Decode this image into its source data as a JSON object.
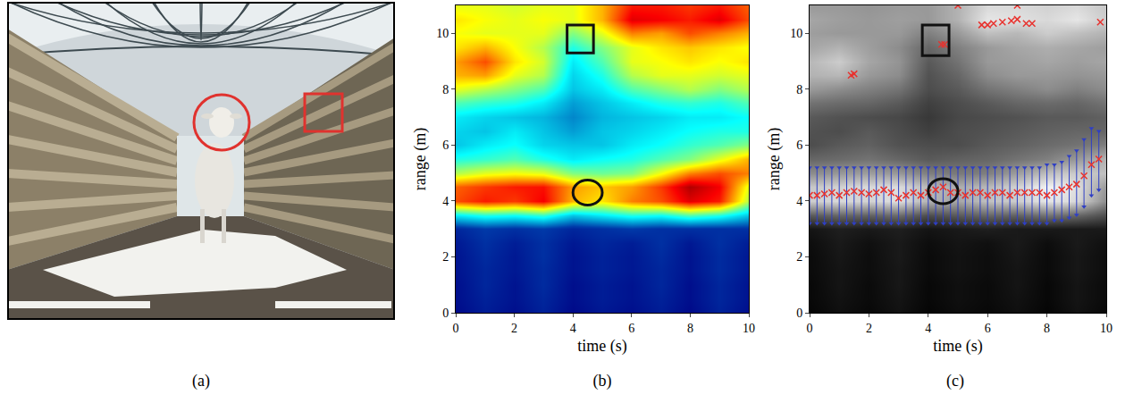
{
  "photo": {
    "label": "(a)"
  },
  "chart_data": [
    {
      "type": "heatmap",
      "label": "(b)",
      "color": "jet",
      "x_label": "time (s)",
      "y_label": "range (m)",
      "xlim": [
        0,
        10
      ],
      "xticks": [
        0,
        2,
        4,
        6,
        8,
        10
      ],
      "ylim": [
        0,
        11
      ],
      "yticks": [
        0,
        2,
        4,
        6,
        8,
        10
      ],
      "zlim": [
        0,
        1
      ],
      "x": [
        0,
        1,
        2,
        3,
        4,
        5,
        6,
        7,
        8,
        9,
        10
      ],
      "y": [
        0,
        0.5,
        1,
        1.5,
        2,
        2.5,
        3,
        3.5,
        4,
        4.5,
        5,
        5.5,
        6,
        6.5,
        7,
        7.5,
        8,
        8.5,
        9,
        9.5,
        10,
        10.5,
        11
      ],
      "z": [
        [
          0.02,
          0.06,
          0.03,
          0.07,
          0.02,
          0.05,
          0.03,
          0.06,
          0.02,
          0.07,
          0.03
        ],
        [
          0.03,
          0.07,
          0.04,
          0.08,
          0.03,
          0.06,
          0.04,
          0.07,
          0.03,
          0.08,
          0.04
        ],
        [
          0.03,
          0.08,
          0.04,
          0.09,
          0.03,
          0.06,
          0.04,
          0.08,
          0.03,
          0.08,
          0.04
        ],
        [
          0.04,
          0.08,
          0.05,
          0.09,
          0.04,
          0.07,
          0.05,
          0.08,
          0.04,
          0.09,
          0.05
        ],
        [
          0.04,
          0.09,
          0.05,
          0.1,
          0.04,
          0.07,
          0.05,
          0.09,
          0.04,
          0.09,
          0.05
        ],
        [
          0.05,
          0.1,
          0.06,
          0.1,
          0.05,
          0.08,
          0.06,
          0.1,
          0.05,
          0.1,
          0.06
        ],
        [
          0.08,
          0.12,
          0.1,
          0.12,
          0.08,
          0.1,
          0.12,
          0.1,
          0.1,
          0.1,
          0.1
        ],
        [
          0.35,
          0.4,
          0.38,
          0.42,
          0.3,
          0.35,
          0.4,
          0.38,
          0.45,
          0.4,
          0.3
        ],
        [
          0.8,
          0.85,
          0.82,
          0.88,
          0.7,
          0.65,
          0.75,
          0.8,
          0.9,
          0.85,
          0.55
        ],
        [
          0.78,
          0.82,
          0.85,
          0.86,
          0.72,
          0.68,
          0.72,
          0.82,
          0.95,
          0.88,
          0.6
        ],
        [
          0.55,
          0.6,
          0.62,
          0.6,
          0.5,
          0.48,
          0.5,
          0.62,
          0.75,
          0.8,
          0.75
        ],
        [
          0.4,
          0.42,
          0.45,
          0.4,
          0.35,
          0.38,
          0.4,
          0.45,
          0.5,
          0.6,
          0.7
        ],
        [
          0.3,
          0.35,
          0.38,
          0.32,
          0.3,
          0.3,
          0.35,
          0.38,
          0.42,
          0.45,
          0.5
        ],
        [
          0.32,
          0.3,
          0.35,
          0.3,
          0.25,
          0.3,
          0.32,
          0.35,
          0.38,
          0.4,
          0.4
        ],
        [
          0.35,
          0.32,
          0.3,
          0.28,
          0.22,
          0.28,
          0.3,
          0.32,
          0.35,
          0.35,
          0.38
        ],
        [
          0.45,
          0.42,
          0.4,
          0.35,
          0.25,
          0.3,
          0.35,
          0.4,
          0.42,
          0.4,
          0.45
        ],
        [
          0.6,
          0.55,
          0.5,
          0.45,
          0.3,
          0.35,
          0.45,
          0.5,
          0.55,
          0.5,
          0.55
        ],
        [
          0.7,
          0.72,
          0.6,
          0.55,
          0.32,
          0.4,
          0.55,
          0.6,
          0.6,
          0.58,
          0.6
        ],
        [
          0.72,
          0.8,
          0.65,
          0.58,
          0.35,
          0.45,
          0.6,
          0.62,
          0.65,
          0.62,
          0.65
        ],
        [
          0.65,
          0.7,
          0.62,
          0.55,
          0.4,
          0.5,
          0.6,
          0.65,
          0.68,
          0.65,
          0.62
        ],
        [
          0.62,
          0.6,
          0.6,
          0.6,
          0.5,
          0.6,
          0.75,
          0.72,
          0.8,
          0.75,
          0.7
        ],
        [
          0.65,
          0.62,
          0.6,
          0.62,
          0.6,
          0.7,
          0.9,
          0.88,
          0.85,
          0.9,
          0.8
        ],
        [
          0.6,
          0.6,
          0.58,
          0.6,
          0.6,
          0.7,
          0.85,
          0.85,
          0.82,
          0.85,
          0.78
        ]
      ],
      "highlights": [
        {
          "shape": "rect",
          "x": [
            3.8,
            4.7
          ],
          "y": [
            9.3,
            10.3
          ]
        },
        {
          "shape": "circle",
          "x": [
            4.0,
            5.0
          ],
          "y": [
            3.85,
            4.75
          ]
        }
      ]
    },
    {
      "type": "heatmap",
      "label": "(c)",
      "color": "gray",
      "x_label": "time (s)",
      "y_label": "range (m)",
      "xlim": [
        0,
        10
      ],
      "xticks": [
        0,
        2,
        4,
        6,
        8,
        10
      ],
      "ylim": [
        0,
        11
      ],
      "yticks": [
        0,
        2,
        4,
        6,
        8,
        10
      ],
      "zlim": [
        0,
        1
      ],
      "x": [
        0,
        1,
        2,
        3,
        4,
        5,
        6,
        7,
        8,
        9,
        10
      ],
      "y": [
        0,
        0.5,
        1,
        1.5,
        2,
        2.5,
        3,
        3.5,
        4,
        4.5,
        5,
        5.5,
        6,
        6.5,
        7,
        7.5,
        8,
        8.5,
        9,
        9.5,
        10,
        10.5,
        11
      ],
      "z": [
        [
          0.02,
          0.06,
          0.03,
          0.07,
          0.02,
          0.05,
          0.03,
          0.06,
          0.02,
          0.07,
          0.03
        ],
        [
          0.03,
          0.07,
          0.04,
          0.08,
          0.03,
          0.06,
          0.04,
          0.07,
          0.03,
          0.08,
          0.04
        ],
        [
          0.03,
          0.08,
          0.04,
          0.09,
          0.03,
          0.06,
          0.04,
          0.08,
          0.03,
          0.08,
          0.04
        ],
        [
          0.04,
          0.08,
          0.05,
          0.09,
          0.04,
          0.07,
          0.05,
          0.08,
          0.04,
          0.09,
          0.05
        ],
        [
          0.04,
          0.09,
          0.05,
          0.1,
          0.04,
          0.07,
          0.05,
          0.09,
          0.04,
          0.09,
          0.05
        ],
        [
          0.05,
          0.1,
          0.06,
          0.1,
          0.05,
          0.08,
          0.06,
          0.1,
          0.05,
          0.1,
          0.06
        ],
        [
          0.08,
          0.12,
          0.1,
          0.12,
          0.08,
          0.1,
          0.12,
          0.1,
          0.1,
          0.1,
          0.1
        ],
        [
          0.35,
          0.4,
          0.38,
          0.42,
          0.3,
          0.35,
          0.4,
          0.38,
          0.45,
          0.4,
          0.3
        ],
        [
          0.8,
          0.85,
          0.82,
          0.88,
          0.7,
          0.65,
          0.75,
          0.8,
          0.9,
          0.85,
          0.55
        ],
        [
          0.78,
          0.82,
          0.85,
          0.86,
          0.72,
          0.68,
          0.72,
          0.82,
          0.95,
          0.88,
          0.6
        ],
        [
          0.55,
          0.6,
          0.62,
          0.6,
          0.5,
          0.48,
          0.5,
          0.62,
          0.75,
          0.8,
          0.75
        ],
        [
          0.4,
          0.42,
          0.45,
          0.4,
          0.35,
          0.38,
          0.4,
          0.45,
          0.5,
          0.6,
          0.7
        ],
        [
          0.3,
          0.35,
          0.38,
          0.32,
          0.3,
          0.3,
          0.35,
          0.38,
          0.42,
          0.45,
          0.5
        ],
        [
          0.32,
          0.3,
          0.35,
          0.3,
          0.25,
          0.3,
          0.32,
          0.35,
          0.38,
          0.4,
          0.4
        ],
        [
          0.35,
          0.32,
          0.3,
          0.28,
          0.22,
          0.28,
          0.3,
          0.32,
          0.35,
          0.35,
          0.38
        ],
        [
          0.45,
          0.42,
          0.4,
          0.35,
          0.25,
          0.3,
          0.35,
          0.4,
          0.42,
          0.4,
          0.45
        ],
        [
          0.6,
          0.55,
          0.5,
          0.45,
          0.3,
          0.35,
          0.45,
          0.5,
          0.55,
          0.5,
          0.55
        ],
        [
          0.7,
          0.72,
          0.6,
          0.55,
          0.32,
          0.4,
          0.55,
          0.6,
          0.6,
          0.58,
          0.6
        ],
        [
          0.72,
          0.8,
          0.65,
          0.58,
          0.35,
          0.45,
          0.6,
          0.62,
          0.65,
          0.62,
          0.65
        ],
        [
          0.65,
          0.7,
          0.62,
          0.55,
          0.4,
          0.5,
          0.6,
          0.65,
          0.68,
          0.65,
          0.62
        ],
        [
          0.62,
          0.6,
          0.6,
          0.6,
          0.5,
          0.6,
          0.75,
          0.72,
          0.8,
          0.75,
          0.7
        ],
        [
          0.65,
          0.62,
          0.6,
          0.62,
          0.6,
          0.7,
          0.9,
          0.88,
          0.85,
          0.9,
          0.8
        ],
        [
          0.6,
          0.6,
          0.58,
          0.6,
          0.6,
          0.7,
          0.85,
          0.85,
          0.82,
          0.85,
          0.78
        ]
      ],
      "series": [
        {
          "type": "scatter",
          "marker": "x",
          "color": "#e8322e",
          "x": [
            0,
            0.25,
            0.5,
            0.75,
            1,
            1.25,
            1.5,
            1.75,
            2,
            2.25,
            2.5,
            2.75,
            3,
            3.25,
            3.5,
            3.75,
            4,
            4.25,
            4.5,
            4.75,
            5,
            5.25,
            5.5,
            5.75,
            6,
            6.25,
            6.5,
            6.75,
            7,
            7.25,
            7.5,
            7.75,
            8,
            8.25,
            8.5,
            8.75,
            9,
            9.25,
            9.5,
            9.75
          ],
          "values": [
            4.2,
            4.2,
            4.25,
            4.3,
            4.2,
            4.3,
            4.35,
            4.3,
            4.25,
            4.3,
            4.4,
            4.3,
            4.1,
            4.2,
            4.3,
            4.2,
            4.3,
            4.4,
            4.5,
            4.3,
            4.3,
            4.2,
            4.3,
            4.3,
            4.2,
            4.3,
            4.3,
            4.2,
            4.3,
            4.3,
            4.3,
            4.3,
            4.2,
            4.3,
            4.4,
            4.5,
            4.6,
            4.9,
            5.3,
            5.5
          ],
          "lower": [
            3.2,
            3.2,
            3.2,
            3.2,
            3.2,
            3.2,
            3.2,
            3.2,
            3.2,
            3.2,
            3.2,
            3.2,
            3.2,
            3.2,
            3.2,
            3.2,
            3.2,
            3.2,
            3.2,
            3.2,
            3.2,
            3.2,
            3.2,
            3.2,
            3.2,
            3.2,
            3.2,
            3.2,
            3.2,
            3.2,
            3.2,
            3.2,
            3.2,
            3.3,
            3.3,
            3.4,
            3.5,
            3.8,
            4.2,
            4.4
          ],
          "upper": [
            5.2,
            5.2,
            5.2,
            5.2,
            5.2,
            5.2,
            5.2,
            5.2,
            5.2,
            5.2,
            5.2,
            5.2,
            5.2,
            5.2,
            5.2,
            5.2,
            5.2,
            5.2,
            5.2,
            5.2,
            5.2,
            5.2,
            5.2,
            5.2,
            5.2,
            5.2,
            5.2,
            5.2,
            5.2,
            5.2,
            5.2,
            5.2,
            5.3,
            5.3,
            5.4,
            5.6,
            5.8,
            6.2,
            6.6,
            6.5
          ]
        },
        {
          "type": "scatter",
          "marker": "x",
          "color": "#e8322e",
          "x": [
            1.4,
            1.5,
            4.45,
            4.55,
            5.8,
            6.0,
            6.2,
            6.5,
            6.8,
            7.0,
            7.3,
            7.5,
            9.8,
            5.0,
            7.0
          ],
          "values": [
            8.5,
            8.55,
            9.6,
            9.6,
            10.3,
            10.3,
            10.35,
            10.4,
            10.45,
            10.5,
            10.35,
            10.35,
            10.4,
            11.0,
            11.0
          ]
        }
      ],
      "highlights": [
        {
          "shape": "rect",
          "x": [
            3.8,
            4.7
          ],
          "y": [
            9.2,
            10.3
          ]
        },
        {
          "shape": "circle",
          "x": [
            4.0,
            5.0
          ],
          "y": [
            3.9,
            4.8
          ]
        }
      ]
    }
  ]
}
